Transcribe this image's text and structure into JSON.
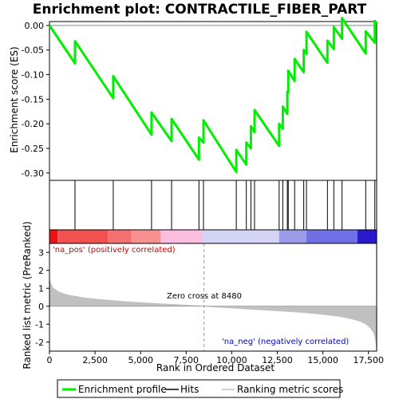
{
  "chart_data": {
    "type": "line",
    "title": "Enrichment plot: CONTRACTILE_FIBER_PART",
    "top_panel": {
      "ylabel": "Enrichment score (ES)",
      "ylim": [
        -0.315,
        0.008
      ],
      "yticks": [
        0.0,
        -0.05,
        -0.1,
        -0.15,
        -0.2,
        -0.25,
        -0.3
      ],
      "ytick_labels": [
        "0.00",
        "-0.05",
        "-0.10",
        "-0.15",
        "-0.20",
        "-0.25",
        "-0.30"
      ],
      "series": [
        {
          "name": "Enrichment profile",
          "color": "#00ee00",
          "x": [
            0,
            1400,
            1400,
            3500,
            3500,
            5600,
            5600,
            6700,
            6700,
            8200,
            8200,
            8450,
            8450,
            10250,
            10250,
            10800,
            10800,
            11050,
            11050,
            11250,
            11250,
            12600,
            12600,
            12800,
            12800,
            13050,
            13050,
            13100,
            13100,
            13450,
            13450,
            13950,
            13950,
            14100,
            14100,
            15250,
            15250,
            15600,
            15600,
            16050,
            16050,
            17350,
            17350,
            17850,
            17850,
            17950
          ],
          "y": [
            0.0,
            -0.077,
            -0.032,
            -0.148,
            -0.103,
            -0.222,
            -0.177,
            -0.235,
            -0.19,
            -0.273,
            -0.228,
            -0.238,
            -0.193,
            -0.298,
            -0.253,
            -0.283,
            -0.238,
            -0.25,
            -0.205,
            -0.217,
            -0.172,
            -0.245,
            -0.2,
            -0.21,
            -0.165,
            -0.18,
            -0.135,
            -0.137,
            -0.092,
            -0.113,
            -0.068,
            -0.095,
            -0.05,
            -0.058,
            -0.013,
            -0.076,
            -0.031,
            -0.048,
            -0.003,
            -0.027,
            0.015,
            -0.057,
            -0.012,
            -0.035,
            0.009,
            0.004
          ]
        }
      ]
    },
    "hits_panel": {
      "hit_positions": [
        1400,
        3500,
        5600,
        6700,
        8200,
        8450,
        10250,
        10800,
        11050,
        11250,
        12600,
        12800,
        13050,
        13100,
        13450,
        13950,
        14100,
        15250,
        15600,
        16050,
        17350,
        17850
      ],
      "hit_color": "#000000"
    },
    "gradient_bar": {
      "segments": [
        {
          "x0": 0,
          "x1": 450,
          "color": "#ee1111"
        },
        {
          "x0": 450,
          "x1": 3200,
          "color": "#f35050"
        },
        {
          "x0": 3200,
          "x1": 4500,
          "color": "#f57070"
        },
        {
          "x0": 4500,
          "x1": 6100,
          "color": "#f79090"
        },
        {
          "x0": 6100,
          "x1": 8400,
          "color": "#fbbde0"
        },
        {
          "x0": 8400,
          "x1": 12600,
          "color": "#d4d4f6"
        },
        {
          "x0": 12600,
          "x1": 14100,
          "color": "#9b9be8"
        },
        {
          "x0": 14100,
          "x1": 16900,
          "color": "#6f6fe6"
        },
        {
          "x0": 16900,
          "x1": 17950,
          "color": "#2a1acc"
        }
      ]
    },
    "bottom_panel": {
      "ylabel": "Ranked list metric (PreRanked)",
      "xlabel": "Rank in Ordered Dataset",
      "ylim": [
        -2.5,
        3.5
      ],
      "yticks": [
        3,
        2,
        1,
        0,
        -1,
        -2
      ],
      "ytick_labels": [
        "3",
        "2",
        "1",
        "0",
        "-1",
        "-2"
      ],
      "xticks": [
        0,
        2500,
        5000,
        7500,
        10000,
        12500,
        15000,
        17500
      ],
      "xtick_labels": [
        "0",
        "2,500",
        "5,000",
        "7,500",
        "10,000",
        "12,500",
        "15,000",
        "17,500"
      ],
      "metric_color": "#c0c0c0",
      "metric_x": [
        0,
        50,
        200,
        500,
        1000,
        2000,
        3000,
        4000,
        5000,
        6000,
        7000,
        8000,
        8480,
        9000,
        10000,
        11000,
        12000,
        13000,
        14000,
        15000,
        16000,
        16500,
        17000,
        17300,
        17500,
        17650,
        17800,
        17900,
        17950
      ],
      "metric_y": [
        1.6,
        1.3,
        1.0,
        0.8,
        0.62,
        0.45,
        0.35,
        0.27,
        0.2,
        0.14,
        0.08,
        0.03,
        0.0,
        -0.04,
        -0.1,
        -0.16,
        -0.22,
        -0.28,
        -0.35,
        -0.45,
        -0.58,
        -0.68,
        -0.82,
        -0.95,
        -1.1,
        -1.25,
        -1.5,
        -1.9,
        -2.4
      ],
      "zero_cross": 8480,
      "zero_cross_label": "Zero cross at 8480",
      "pos_label": "'na_pos' (positively correlated)",
      "neg_label": "'na_neg' (negatively correlated)",
      "pos_color": "#cc0000",
      "neg_color": "#0000cc"
    },
    "xlim": [
      0,
      17950
    ],
    "legend": {
      "placement": "bottom",
      "entries": [
        {
          "label": "Enrichment profile",
          "color": "#00ee00"
        },
        {
          "label": "Hits",
          "color": "#000000"
        },
        {
          "label": "Ranking metric scores",
          "color": "#c0c0c0"
        }
      ]
    }
  }
}
